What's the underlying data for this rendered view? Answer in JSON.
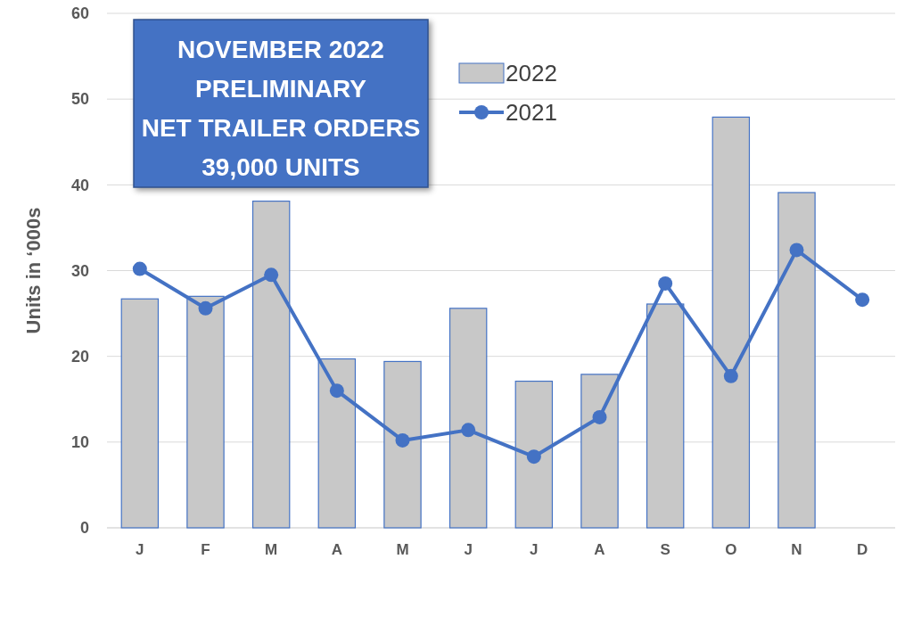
{
  "chart_data": {
    "type": "bar",
    "title": "NOVEMBER 2022\nPRELIMINARY\nNET TRAILER ORDERS\n39,000  UNITS",
    "ylabel": "Units in ‘000s",
    "categories": [
      "J",
      "F",
      "M",
      "A",
      "M",
      "J",
      "J",
      "A",
      "S",
      "O",
      "N",
      "D"
    ],
    "series": [
      {
        "name": "2022",
        "color": "#c8c8c8",
        "values": [
          26.7,
          27.0,
          38.1,
          19.7,
          19.4,
          25.6,
          17.1,
          17.9,
          26.1,
          47.9,
          39.1,
          null
        ]
      },
      {
        "name": "2021",
        "type": "line",
        "color": "#4472c4",
        "values": [
          30.2,
          25.6,
          29.5,
          16.0,
          10.2,
          11.4,
          8.3,
          12.9,
          28.5,
          17.7,
          32.4,
          26.6
        ]
      }
    ],
    "ylim": [
      0,
      60
    ],
    "yticks": [
      0,
      10,
      20,
      30,
      40,
      50,
      60
    ],
    "grid": "y",
    "legend": "top",
    "marker": "circle",
    "line_style": "solid"
  }
}
